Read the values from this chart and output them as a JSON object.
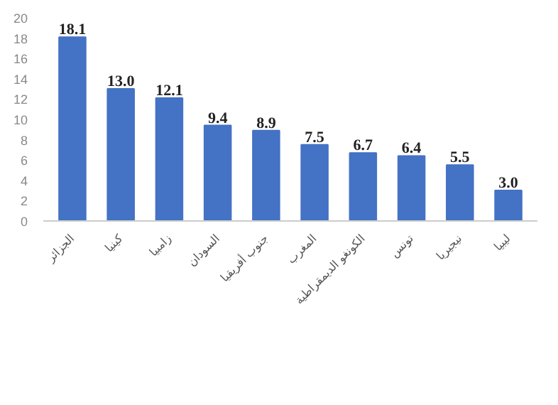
{
  "chart_data": {
    "type": "bar",
    "categories": [
      "الجزائر",
      "كينيا",
      "زامبيا",
      "السودان",
      "جنوب أفريقيا",
      "المغرب",
      "الكونغو الديمقراطية",
      "تونس",
      "نيجيريا",
      "ليبيا"
    ],
    "values": [
      18.1,
      13.0,
      12.1,
      9.4,
      8.9,
      7.5,
      6.7,
      6.4,
      5.5,
      3.0
    ],
    "value_labels": [
      "18.1",
      "13.0",
      "12.1",
      "9.4",
      "8.9",
      "7.5",
      "6.7",
      "6.4",
      "5.5",
      "3.0"
    ],
    "color": "#4472c4",
    "ylim": [
      0,
      20
    ],
    "yticks": [
      0,
      2,
      4,
      6,
      8,
      10,
      12,
      14,
      16,
      18,
      20
    ],
    "grid": false
  }
}
